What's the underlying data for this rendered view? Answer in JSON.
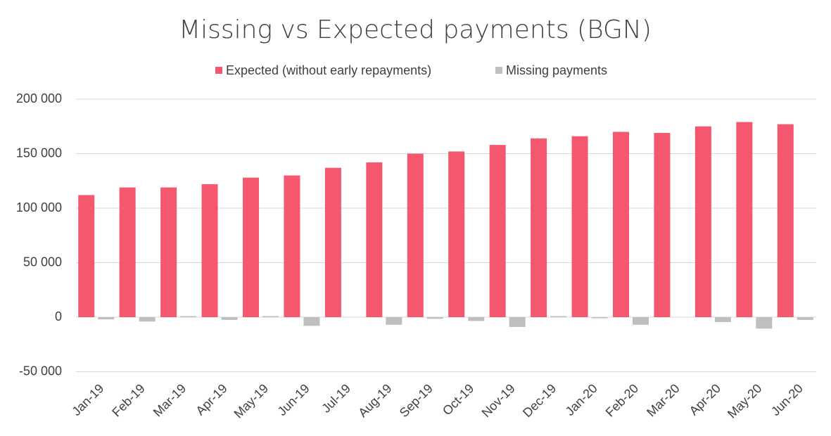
{
  "chart_data": {
    "type": "bar",
    "title": "Missing vs Expected payments (BGN)",
    "categories": [
      "Jan-19",
      "Feb-19",
      "Mar-19",
      "Apr-19",
      "May-19",
      "Jun-19",
      "Jul-19",
      "Aug-19",
      "Sep-19",
      "Oct-19",
      "Nov-19",
      "Dec-19",
      "Jan-20",
      "Feb-20",
      "Mar-20",
      "Apr-20",
      "May-20",
      "Jun-20"
    ],
    "series": [
      {
        "name": "Expected (without early repayments)",
        "color": "#f5586e",
        "values": [
          112000,
          119000,
          119000,
          122000,
          128000,
          130000,
          137000,
          142000,
          150000,
          152000,
          158000,
          164000,
          166000,
          170000,
          169000,
          175000,
          179000,
          177000
        ]
      },
      {
        "name": "Missing payments",
        "color": "#bfbfbf",
        "values": [
          -2000,
          -4000,
          1000,
          -2500,
          1000,
          -8000,
          0,
          -7000,
          -1500,
          -3500,
          -9000,
          1000,
          -1000,
          -7000,
          0,
          -4500,
          -10500,
          -2500
        ]
      }
    ],
    "ylim": [
      -50000,
      200000
    ],
    "yticks": [
      {
        "value": -50000,
        "label": "-50 000"
      },
      0,
      {
        "value": 50000,
        "label": "50 000"
      },
      {
        "value": 100000,
        "label": "100 000"
      },
      {
        "value": 150000,
        "label": "150 000"
      },
      {
        "value": 200000,
        "label": "200 000"
      }
    ],
    "grid": true
  }
}
